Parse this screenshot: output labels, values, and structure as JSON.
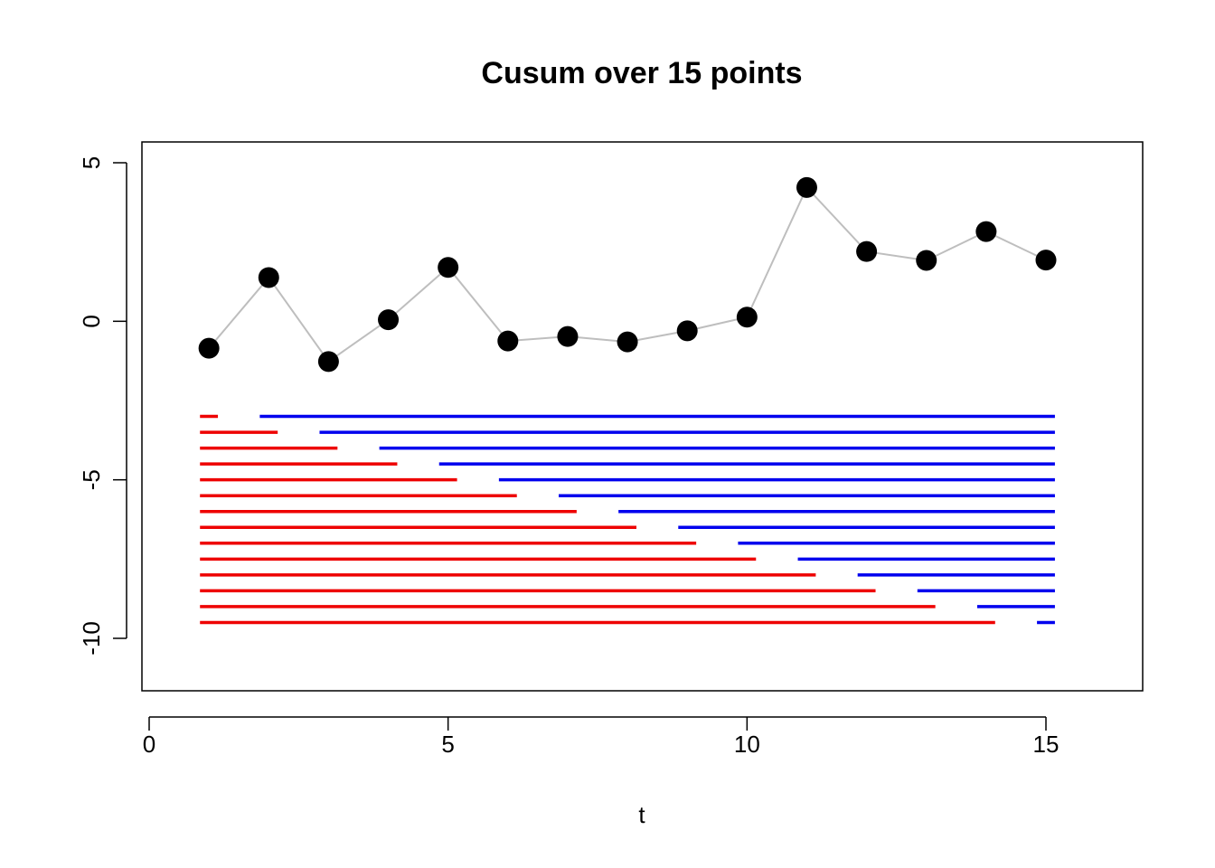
{
  "chart_data": {
    "type": "scatter",
    "title": "Cusum over 15 points",
    "xlabel": "t",
    "ylabel": "",
    "xlim": [
      0,
      16.5
    ],
    "ylim": [
      -11.5,
      5.5
    ],
    "x_ticks": [
      0,
      5,
      10,
      15
    ],
    "y_ticks": [
      5,
      0,
      -5,
      -10
    ],
    "grid": false,
    "series": [
      {
        "x": [
          1,
          2,
          3,
          4,
          5,
          6,
          7,
          8,
          9,
          10,
          11,
          12,
          13,
          14,
          15
        ],
        "y": [
          -0.85,
          1.38,
          -1.27,
          0.05,
          1.7,
          -0.62,
          -0.48,
          -0.65,
          -0.3,
          0.13,
          4.22,
          2.2,
          1.92,
          2.83,
          1.93
        ]
      }
    ],
    "segments": {
      "red": [
        {
          "x0": 0.85,
          "x1": 1.15,
          "y": -3.0
        },
        {
          "x0": 0.85,
          "x1": 2.15,
          "y": -3.5
        },
        {
          "x0": 0.85,
          "x1": 3.15,
          "y": -4.0
        },
        {
          "x0": 0.85,
          "x1": 4.15,
          "y": -4.5
        },
        {
          "x0": 0.85,
          "x1": 5.15,
          "y": -5.0
        },
        {
          "x0": 0.85,
          "x1": 6.15,
          "y": -5.5
        },
        {
          "x0": 0.85,
          "x1": 7.15,
          "y": -6.0
        },
        {
          "x0": 0.85,
          "x1": 8.15,
          "y": -6.5
        },
        {
          "x0": 0.85,
          "x1": 9.15,
          "y": -7.0
        },
        {
          "x0": 0.85,
          "x1": 10.15,
          "y": -7.5
        },
        {
          "x0": 0.85,
          "x1": 11.15,
          "y": -8.0
        },
        {
          "x0": 0.85,
          "x1": 12.15,
          "y": -8.5
        },
        {
          "x0": 0.85,
          "x1": 13.15,
          "y": -9.0
        },
        {
          "x0": 0.85,
          "x1": 14.15,
          "y": -9.5
        }
      ],
      "blue": [
        {
          "x0": 1.85,
          "x1": 15.15,
          "y": -3.0
        },
        {
          "x0": 2.85,
          "x1": 15.15,
          "y": -3.5
        },
        {
          "x0": 3.85,
          "x1": 15.15,
          "y": -4.0
        },
        {
          "x0": 4.85,
          "x1": 15.15,
          "y": -4.5
        },
        {
          "x0": 5.85,
          "x1": 15.15,
          "y": -5.0
        },
        {
          "x0": 6.85,
          "x1": 15.15,
          "y": -5.5
        },
        {
          "x0": 7.85,
          "x1": 15.15,
          "y": -6.0
        },
        {
          "x0": 8.85,
          "x1": 15.15,
          "y": -6.5
        },
        {
          "x0": 9.85,
          "x1": 15.15,
          "y": -7.0
        },
        {
          "x0": 10.85,
          "x1": 15.15,
          "y": -7.5
        },
        {
          "x0": 11.85,
          "x1": 15.15,
          "y": -8.0
        },
        {
          "x0": 12.85,
          "x1": 15.15,
          "y": -8.5
        },
        {
          "x0": 13.85,
          "x1": 15.15,
          "y": -9.0
        },
        {
          "x0": 14.85,
          "x1": 15.15,
          "y": -9.5
        }
      ]
    },
    "colors": {
      "points": "#000000",
      "connector": "#bebebe",
      "red_segments": "#ee0000",
      "blue_segments": "#0000ee",
      "frame": "#000000"
    }
  }
}
